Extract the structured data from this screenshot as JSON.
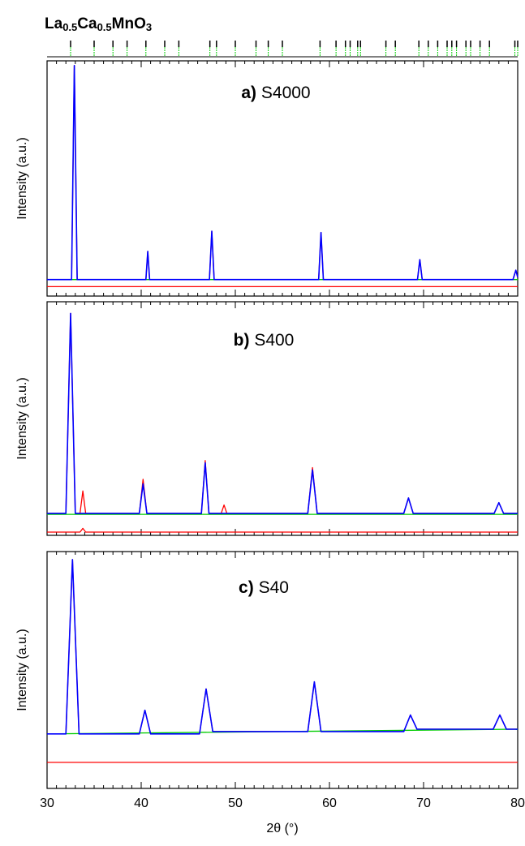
{
  "chart_data": [
    {
      "type": "line",
      "title": [
        "La",
        "0.5",
        "Ca",
        "0.5",
        "MnO",
        "3"
      ],
      "label_letter": "a)",
      "label": "S4000",
      "ylabel": "Intensity (a.u.)",
      "xlim": [
        30,
        80
      ],
      "ylim": [
        0,
        100
      ],
      "xticks": [
        30,
        40,
        50,
        60,
        70,
        80
      ],
      "reflections": [
        32.5,
        35,
        37,
        38.5,
        40.5,
        42.5,
        44,
        47.3,
        48,
        50,
        52.2,
        53.5,
        55,
        59,
        60.7,
        61.7,
        62.2,
        63,
        63.3,
        66,
        67,
        69.5,
        70.5,
        71.5,
        72.5,
        73,
        73.5,
        74.5,
        75,
        76,
        77,
        79.7,
        80
      ],
      "reflection_colors": [
        "#000000",
        "#00cc00"
      ],
      "series": [
        {
          "color": "#ff0000",
          "x": [
            30,
            32.6,
            32.9,
            33.2,
            40.5,
            40.7,
            40.9,
            47.25,
            47.5,
            47.75,
            58.85,
            59.1,
            59.35,
            69.35,
            69.6,
            69.85,
            79.5,
            79.8,
            80
          ],
          "values": [
            7,
            7,
            98,
            7,
            7,
            19,
            7,
            7,
            27.6,
            7,
            7,
            27,
            7,
            7,
            15.5,
            7,
            7,
            11,
            8
          ]
        },
        {
          "color": "#00cc00",
          "x": [
            30,
            80
          ],
          "values": [
            7,
            7
          ]
        },
        {
          "color": "#0000ff",
          "x": [
            30,
            32.6,
            32.9,
            33.2,
            40.5,
            40.7,
            40.9,
            47.25,
            47.5,
            47.75,
            58.85,
            59.1,
            59.35,
            69.35,
            69.6,
            69.85,
            79.5,
            79.8,
            80
          ],
          "values": [
            7,
            7,
            98,
            7,
            7,
            19,
            7,
            7,
            27.6,
            7,
            7,
            27,
            7,
            7,
            15.5,
            7,
            7,
            11,
            8
          ]
        },
        {
          "color": "#ff0000",
          "x": [
            30,
            80
          ],
          "values": [
            4,
            4
          ]
        }
      ]
    },
    {
      "type": "line",
      "label_letter": "b)",
      "label": "S400",
      "ylabel": "Intensity (a.u.)",
      "xlim": [
        30,
        80
      ],
      "ylim": [
        0,
        100
      ],
      "xticks": [
        30,
        40,
        50,
        60,
        70,
        80
      ],
      "series": [
        {
          "color": "#ff0000",
          "x": [
            30,
            32,
            32.5,
            33,
            33.5,
            33.8,
            34.1,
            39.8,
            40.2,
            40.6,
            46.4,
            46.8,
            47.2,
            48.5,
            48.8,
            49.1,
            57.7,
            58.2,
            58.7,
            67.9,
            68.4,
            68.9,
            77.5,
            78,
            78.5,
            80
          ],
          "values": [
            9.4,
            9.4,
            95,
            9.4,
            9.4,
            19,
            9.4,
            9.4,
            24,
            9.4,
            9.4,
            32,
            9.4,
            9.4,
            13,
            9.4,
            9.4,
            29,
            9.4,
            9.4,
            16,
            9.4,
            9.4,
            14,
            9.4,
            9.4
          ]
        },
        {
          "color": "#00cc00",
          "x": [
            30,
            80
          ],
          "values": [
            9,
            9
          ]
        },
        {
          "color": "#0000ff",
          "x": [
            30,
            32,
            32.5,
            33,
            39.8,
            40.2,
            40.6,
            46.4,
            46.8,
            47.2,
            57.7,
            58.2,
            58.7,
            67.9,
            68.4,
            68.9,
            77.5,
            78,
            78.5,
            80
          ],
          "values": [
            9.4,
            9.4,
            95,
            9.4,
            9.4,
            22,
            9.4,
            9.4,
            31,
            9.4,
            9.4,
            28,
            9.4,
            9.4,
            16,
            9.4,
            9.4,
            14,
            9.4,
            9.4
          ]
        },
        {
          "color": "#ff0000",
          "x": [
            30,
            33.5,
            33.8,
            34.1,
            80
          ],
          "values": [
            1.4,
            1.4,
            3,
            1.4,
            1.4
          ]
        }
      ]
    },
    {
      "type": "line",
      "label_letter": "c)",
      "label": "S40",
      "ylabel": "Intensity (a.u.)",
      "xlabel": "2θ (°)",
      "xlim": [
        30,
        80
      ],
      "ylim": [
        0,
        100
      ],
      "xticks": [
        30,
        40,
        50,
        60,
        70,
        80
      ],
      "series": [
        {
          "color": "#ff0000",
          "x": [
            30,
            32,
            32.7,
            33.4,
            39.8,
            40.4,
            41,
            46.2,
            46.9,
            47.6,
            57.7,
            58.4,
            59.1,
            67.9,
            68.6,
            69.3,
            77.4,
            78.1,
            78.8,
            80
          ],
          "values": [
            23,
            23,
            96.6,
            23,
            23,
            33,
            23,
            23,
            42,
            24,
            24,
            45,
            24,
            24,
            31,
            25,
            25,
            31,
            25,
            25
          ]
        },
        {
          "color": "#00cc00",
          "x": [
            30,
            80
          ],
          "values": [
            23,
            25
          ]
        },
        {
          "color": "#0000ff",
          "x": [
            30,
            32,
            32.7,
            33.4,
            39.8,
            40.4,
            41,
            46.2,
            46.9,
            47.6,
            57.7,
            58.4,
            59.1,
            67.9,
            68.6,
            69.3,
            77.4,
            78.1,
            78.8,
            80
          ],
          "values": [
            23,
            23,
            96.6,
            23,
            23,
            33,
            23,
            23,
            42,
            24,
            24,
            45,
            24,
            24,
            31,
            25,
            25,
            31,
            25,
            25
          ]
        },
        {
          "color": "#ff0000",
          "x": [
            30,
            80
          ],
          "values": [
            11,
            11
          ]
        }
      ]
    }
  ]
}
